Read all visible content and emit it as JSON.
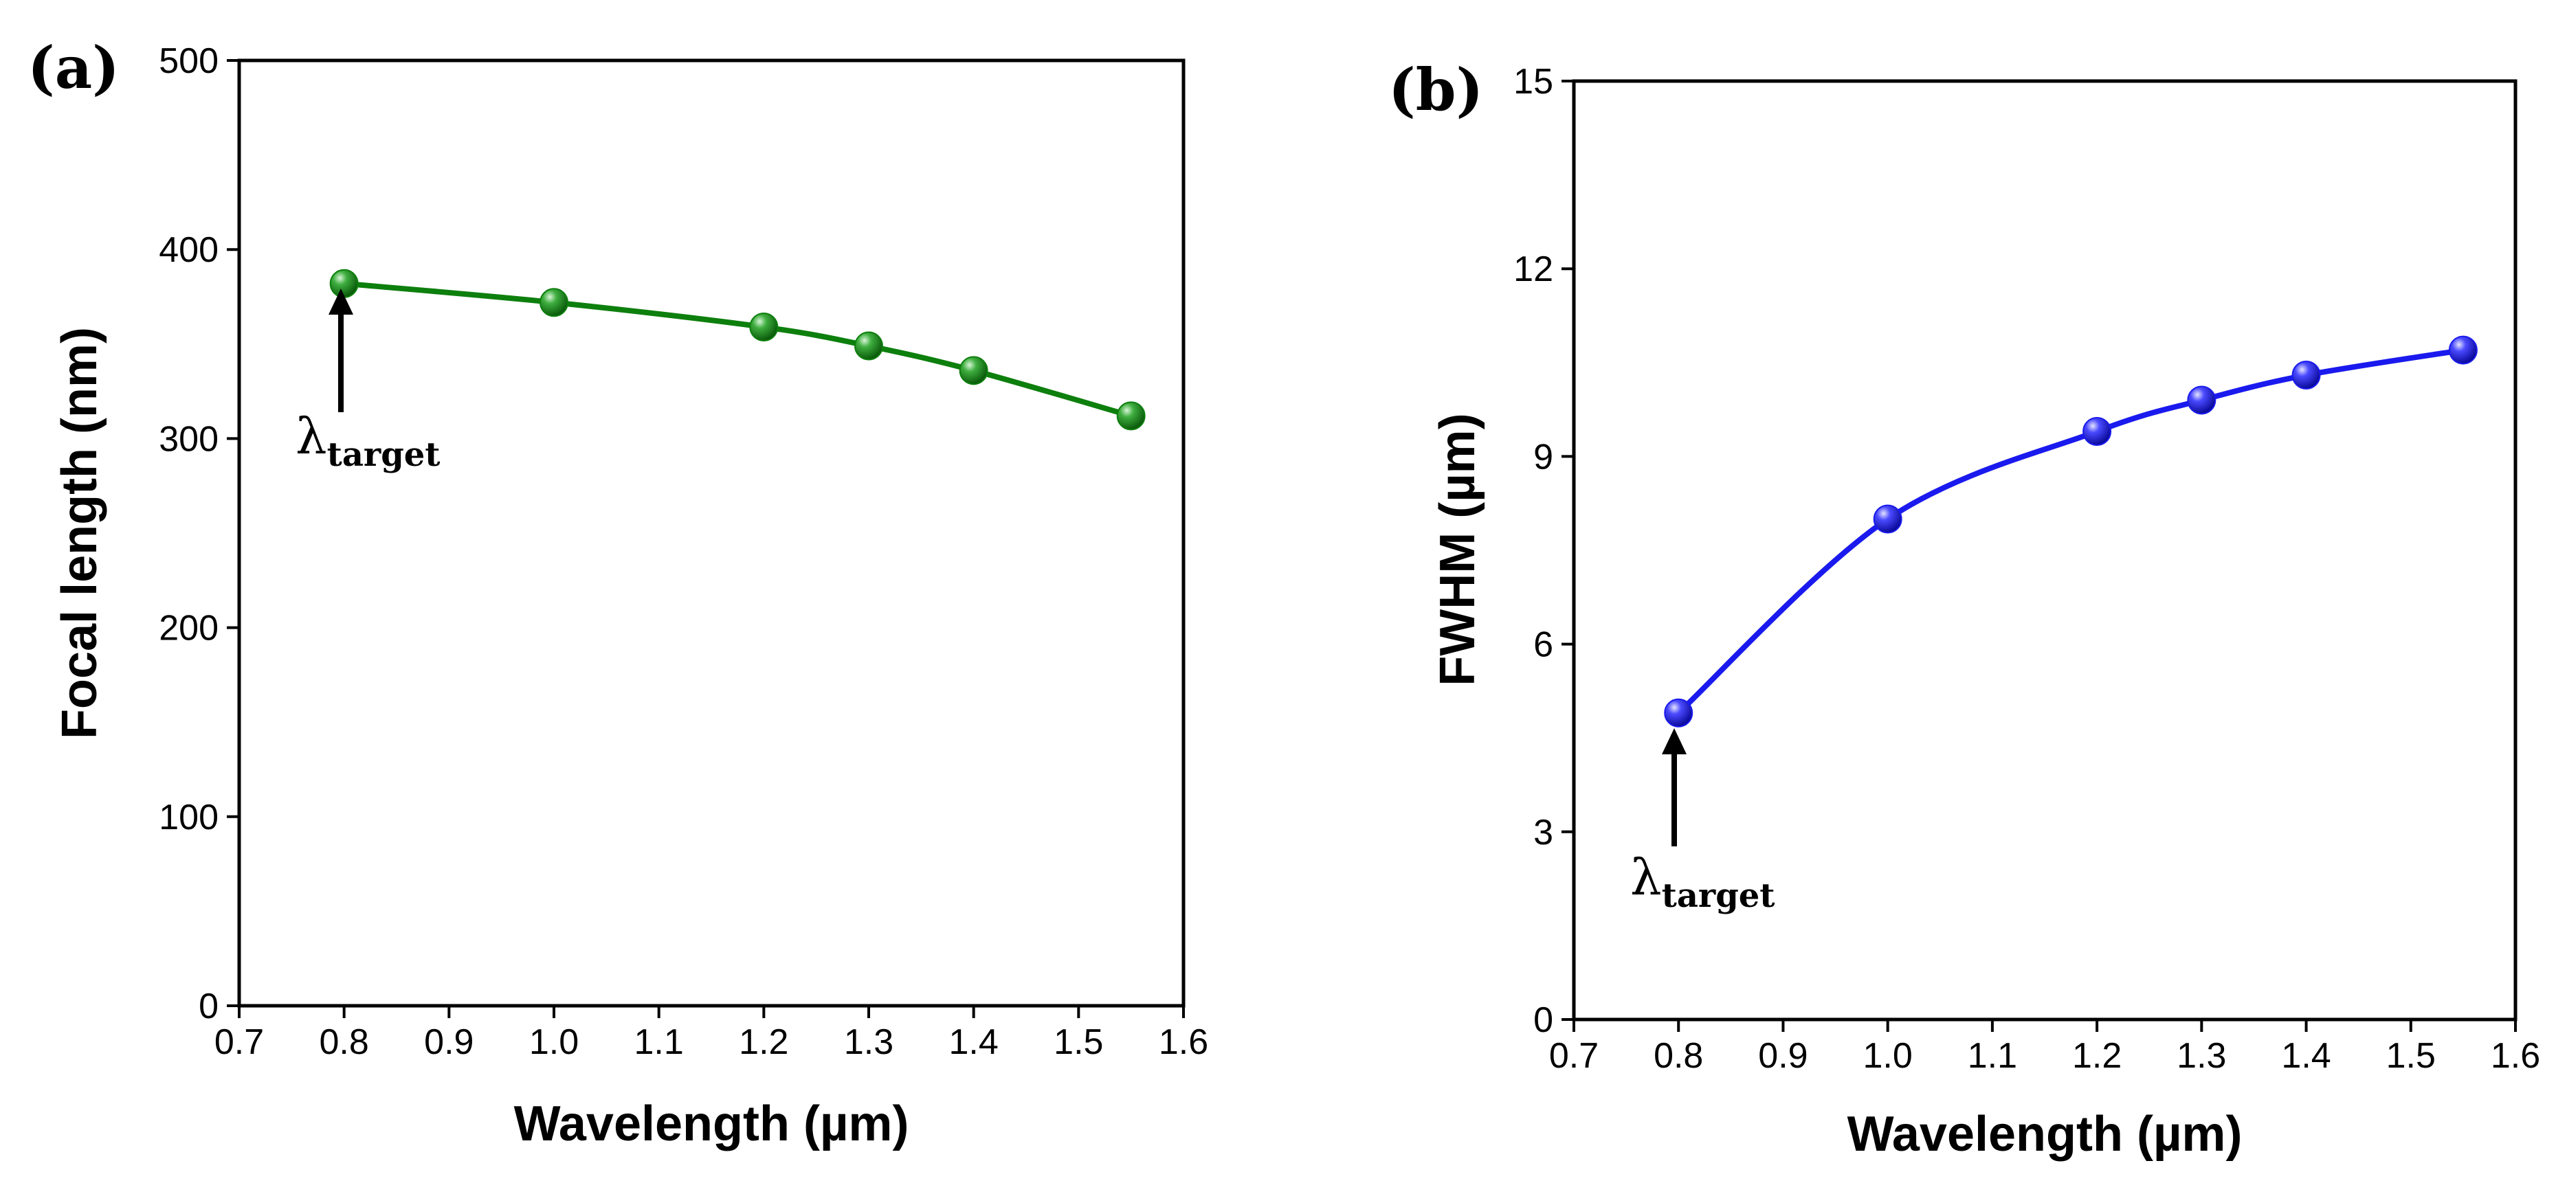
{
  "chart_data": [
    {
      "panel_label": "(a)",
      "type": "line",
      "xlabel": "Wavelength (µm)",
      "ylabel": "Focal length (nm)",
      "xlim": [
        0.7,
        1.6
      ],
      "ylim": [
        0,
        500
      ],
      "xticks": [
        "0.7",
        "0.8",
        "0.9",
        "1.0",
        "1.1",
        "1.2",
        "1.3",
        "1.4",
        "1.5",
        "1.6"
      ],
      "yticks": [
        "0",
        "100",
        "200",
        "300",
        "400",
        "500"
      ],
      "grid": false,
      "series": [
        {
          "name": "Focal length",
          "color": "#0d7f0d",
          "x": [
            0.8,
            1.0,
            1.2,
            1.3,
            1.4,
            1.55
          ],
          "values": [
            382,
            372,
            359,
            349,
            336,
            312
          ]
        }
      ],
      "annotation": {
        "symbol": "λ",
        "subscript": "target",
        "x": 0.8,
        "pointer": "up-arrow"
      }
    },
    {
      "panel_label": "(b)",
      "type": "line",
      "xlabel": "Wavelength (µm)",
      "ylabel": "FWHM (µm)",
      "xlim": [
        0.7,
        1.6
      ],
      "ylim": [
        0,
        15
      ],
      "xticks": [
        "0.7",
        "0.8",
        "0.9",
        "1.0",
        "1.1",
        "1.2",
        "1.3",
        "1.4",
        "1.5",
        "1.6"
      ],
      "yticks": [
        "0",
        "3",
        "6",
        "9",
        "12",
        "15"
      ],
      "grid": false,
      "series": [
        {
          "name": "FWHM",
          "color": "#1a1aee",
          "x": [
            0.8,
            1.0,
            1.2,
            1.3,
            1.4,
            1.55
          ],
          "values": [
            4.9,
            8.0,
            9.4,
            9.9,
            10.3,
            10.7
          ]
        }
      ],
      "annotation": {
        "symbol": "λ",
        "subscript": "target",
        "x": 0.8,
        "pointer": "up-arrow"
      }
    }
  ]
}
